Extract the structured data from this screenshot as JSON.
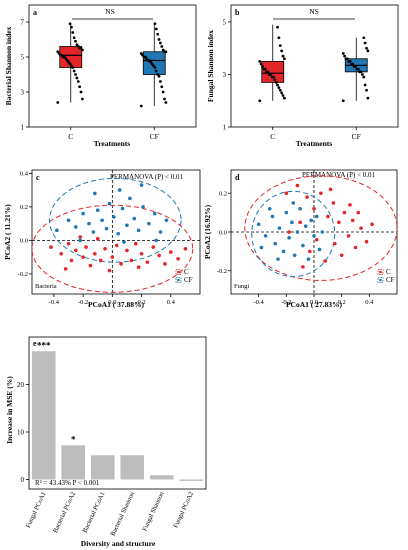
{
  "figure": {
    "panel_a": {
      "letter": "a",
      "ylabel": "Bacterial Shannon index",
      "xlabel": "Treatments",
      "significance": "NS"
    },
    "panel_b": {
      "letter": "b",
      "ylabel": "Fungal Shannon index",
      "xlabel": "Treatments",
      "significance": "NS"
    },
    "panel_c": {
      "letter": "c",
      "xlabel": "PCoA1 ( 37.88%)",
      "ylabel": "PCoA2 ( 11.21%)",
      "annotation": "PERMANOVA (P) < 0.01",
      "corner_label": "Bacteria",
      "legend": [
        "C",
        "CF"
      ]
    },
    "panel_d": {
      "letter": "d",
      "xlabel": "PCoA1 ( 27.83%)",
      "ylabel": "PCoA2 (16.92%)",
      "annotation": "PERMANOVA (P) < 0.01",
      "corner_label": "Fungi",
      "legend": [
        "C",
        "CF"
      ]
    },
    "panel_e": {
      "letter": "e",
      "ylabel": "Increase in MSE (%)",
      "xlabel": "Diversity and structure",
      "stat_text": "R² = 43.43%   P < 0.001"
    }
  },
  "colors": {
    "C": "#e3262a",
    "CF": "#1f78b4",
    "bar": "#bdbdbd"
  },
  "chart_data": [
    {
      "type": "box",
      "title": "",
      "xlabel": "Treatments",
      "ylabel": "Bacterial Shannon index",
      "categories": [
        "C",
        "CF"
      ],
      "ylim": [
        1,
        7
      ],
      "yticks": [
        1,
        3,
        5,
        7
      ],
      "boxes": [
        {
          "name": "C",
          "whisker_low": 2.4,
          "q1": 4.4,
          "median": 5.1,
          "q3": 5.6,
          "whisker_high": 6.9,
          "points": [
            2.4,
            2.6,
            3.0,
            3.3,
            3.6,
            3.8,
            4.0,
            4.2,
            4.4,
            4.5,
            4.6,
            4.7,
            4.8,
            4.9,
            5.0,
            5.0,
            5.1,
            5.1,
            5.2,
            5.3,
            5.4,
            5.5,
            5.5,
            5.6,
            5.7,
            5.9,
            6.1,
            6.4,
            6.7,
            6.9
          ]
        },
        {
          "name": "CF",
          "whisker_low": 2.2,
          "q1": 4.0,
          "median": 4.8,
          "q3": 5.3,
          "whisker_high": 6.9,
          "points": [
            2.2,
            2.4,
            2.6,
            3.0,
            3.3,
            3.6,
            3.9,
            4.0,
            4.2,
            4.4,
            4.5,
            4.6,
            4.7,
            4.8,
            4.8,
            4.9,
            5.0,
            5.0,
            5.1,
            5.2,
            5.3,
            5.3,
            5.4,
            5.6,
            5.8,
            6.0,
            6.3,
            6.6,
            6.9
          ]
        }
      ]
    },
    {
      "type": "box",
      "title": "",
      "xlabel": "Treatments",
      "ylabel": "Fungal Shannon index",
      "categories": [
        "C",
        "CF"
      ],
      "ylim": [
        1,
        5
      ],
      "yticks": [
        1,
        3,
        5
      ],
      "boxes": [
        {
          "name": "C",
          "whisker_low": 2.0,
          "q1": 2.7,
          "median": 3.05,
          "q3": 3.5,
          "whisker_high": 4.9,
          "points": [
            2.0,
            2.1,
            2.2,
            2.3,
            2.4,
            2.5,
            2.6,
            2.7,
            2.8,
            2.9,
            2.9,
            3.0,
            3.0,
            3.1,
            3.1,
            3.2,
            3.2,
            3.3,
            3.4,
            3.5,
            3.6,
            3.7,
            3.9,
            4.1,
            4.4,
            4.8
          ]
        },
        {
          "name": "CF",
          "whisker_low": 2.0,
          "q1": 3.1,
          "median": 3.35,
          "q3": 3.6,
          "whisker_high": 4.4,
          "points": [
            2.0,
            2.1,
            2.4,
            2.6,
            2.9,
            3.0,
            3.1,
            3.1,
            3.2,
            3.2,
            3.3,
            3.3,
            3.4,
            3.4,
            3.5,
            3.5,
            3.6,
            3.6,
            3.7,
            3.8,
            3.9,
            4.0,
            4.2,
            4.4
          ]
        }
      ]
    },
    {
      "type": "scatter",
      "title": "",
      "xlabel": "PCoA1 ( 37.88%)",
      "ylabel": "PCoA2 ( 11.21%)",
      "xlim": [
        -0.55,
        0.6
      ],
      "ylim": [
        -0.32,
        0.42
      ],
      "xticks": [
        -0.4,
        -0.2,
        0.0,
        0.2,
        0.4
      ],
      "yticks": [
        -0.2,
        0.0,
        0.2,
        0.4
      ],
      "series": [
        {
          "name": "C",
          "points": [
            [
              -0.42,
              -0.04
            ],
            [
              -0.35,
              -0.08
            ],
            [
              -0.3,
              -0.02
            ],
            [
              -0.28,
              -0.12
            ],
            [
              -0.25,
              -0.06
            ],
            [
              -0.22,
              0.02
            ],
            [
              -0.2,
              -0.1
            ],
            [
              -0.18,
              -0.04
            ],
            [
              -0.15,
              -0.15
            ],
            [
              -0.12,
              -0.08
            ],
            [
              -0.1,
              0.01
            ],
            [
              -0.08,
              -0.12
            ],
            [
              -0.05,
              -0.05
            ],
            [
              -0.02,
              -0.18
            ],
            [
              0.0,
              -0.1
            ],
            [
              0.03,
              -0.03
            ],
            [
              0.06,
              -0.14
            ],
            [
              0.1,
              -0.06
            ],
            [
              0.13,
              -0.12
            ],
            [
              0.16,
              -0.02
            ],
            [
              0.2,
              -0.08
            ],
            [
              0.24,
              -0.13
            ],
            [
              0.28,
              -0.04
            ],
            [
              0.32,
              -0.09
            ],
            [
              0.36,
              -0.14
            ],
            [
              0.4,
              -0.07
            ],
            [
              0.45,
              -0.11
            ],
            [
              0.5,
              -0.05
            ],
            [
              -0.32,
              -0.17
            ],
            [
              0.18,
              -0.16
            ]
          ]
        },
        {
          "name": "CF",
          "points": [
            [
              -0.38,
              0.06
            ],
            [
              -0.3,
              0.12
            ],
            [
              -0.25,
              0.08
            ],
            [
              -0.2,
              0.16
            ],
            [
              -0.16,
              0.1
            ],
            [
              -0.13,
              0.05
            ],
            [
              -0.1,
              0.18
            ],
            [
              -0.07,
              0.12
            ],
            [
              -0.04,
              0.07
            ],
            [
              -0.02,
              0.22
            ],
            [
              0.01,
              0.14
            ],
            [
              0.04,
              0.04
            ],
            [
              0.07,
              0.19
            ],
            [
              0.1,
              0.09
            ],
            [
              0.12,
              0.25
            ],
            [
              0.15,
              0.13
            ],
            [
              0.18,
              0.06
            ],
            [
              0.21,
              0.2
            ],
            [
              0.25,
              0.1
            ],
            [
              0.29,
              0.16
            ],
            [
              0.33,
              0.05
            ],
            [
              0.37,
              0.12
            ],
            [
              0.05,
              0.3
            ],
            [
              -0.12,
              0.28
            ],
            [
              0.2,
              0.33
            ],
            [
              -0.22,
              0.0
            ],
            [
              0.08,
              -0.01
            ],
            [
              0.3,
              0.0
            ]
          ]
        }
      ],
      "ellipses": [
        {
          "name": "C",
          "cx": 0.0,
          "cy": -0.05,
          "rx": 0.55,
          "ry": 0.26
        },
        {
          "name": "CF",
          "cx": 0.02,
          "cy": 0.12,
          "rx": 0.45,
          "ry": 0.25
        }
      ]
    },
    {
      "type": "scatter",
      "title": "",
      "xlabel": "PCoA1 ( 27.83%)",
      "ylabel": "PCoA2 (16.92%)",
      "xlim": [
        -0.6,
        0.6
      ],
      "ylim": [
        -0.32,
        0.32
      ],
      "xticks": [
        -0.4,
        -0.2,
        0.0,
        0.2,
        0.4
      ],
      "yticks": [
        -0.2,
        0.0,
        0.2
      ],
      "series": [
        {
          "name": "C",
          "points": [
            [
              -0.2,
              0.2
            ],
            [
              -0.12,
              0.24
            ],
            [
              -0.05,
              0.18
            ],
            [
              0.0,
              0.12
            ],
            [
              0.05,
              0.2
            ],
            [
              0.1,
              0.08
            ],
            [
              0.14,
              0.15
            ],
            [
              0.18,
              0.05
            ],
            [
              0.22,
              0.1
            ],
            [
              0.25,
              -0.02
            ],
            [
              0.28,
              0.06
            ],
            [
              0.3,
              -0.08
            ],
            [
              0.34,
              0.02
            ],
            [
              0.38,
              -0.05
            ],
            [
              0.42,
              0.04
            ],
            [
              0.2,
              -0.12
            ],
            [
              0.15,
              -0.06
            ],
            [
              0.08,
              -0.15
            ],
            [
              0.02,
              -0.04
            ],
            [
              -0.03,
              -0.1
            ],
            [
              -0.1,
              0.05
            ],
            [
              -0.18,
              0.0
            ],
            [
              0.12,
              0.22
            ],
            [
              0.26,
              0.14
            ],
            [
              0.32,
              0.1
            ],
            [
              -0.08,
              -0.18
            ]
          ]
        },
        {
          "name": "CF",
          "points": [
            [
              -0.4,
              0.04
            ],
            [
              -0.35,
              -0.02
            ],
            [
              -0.3,
              0.08
            ],
            [
              -0.28,
              -0.06
            ],
            [
              -0.25,
              0.02
            ],
            [
              -0.22,
              -0.1
            ],
            [
              -0.2,
              0.1
            ],
            [
              -0.18,
              -0.03
            ],
            [
              -0.16,
              0.05
            ],
            [
              -0.14,
              -0.12
            ],
            [
              -0.12,
              0.0
            ],
            [
              -0.1,
              0.12
            ],
            [
              -0.08,
              -0.07
            ],
            [
              -0.06,
              0.03
            ],
            [
              -0.04,
              -0.14
            ],
            [
              -0.02,
              0.06
            ],
            [
              0.0,
              -0.02
            ],
            [
              0.02,
              0.08
            ],
            [
              0.04,
              -0.09
            ],
            [
              -0.32,
              0.12
            ],
            [
              -0.26,
              -0.14
            ],
            [
              -0.15,
              0.15
            ],
            [
              0.06,
              0.0
            ],
            [
              -0.38,
              -0.08
            ]
          ]
        }
      ],
      "ellipses": [
        {
          "name": "C",
          "cx": 0.05,
          "cy": 0.02,
          "rx": 0.55,
          "ry": 0.27
        },
        {
          "name": "CF",
          "cx": -0.15,
          "cy": -0.01,
          "rx": 0.3,
          "ry": 0.22
        }
      ]
    },
    {
      "type": "bar",
      "title": "",
      "xlabel": "Diversity and structure",
      "ylabel": "Increase in MSE (%)",
      "categories": [
        "Fungal PCoA1",
        "Bacterial PCoA2",
        "Bacterial PCoA1",
        "Bacterial Shannon",
        "Fungal Shannon",
        "Fungal PCoA2"
      ],
      "values": [
        27.0,
        7.2,
        5.1,
        5.1,
        0.9,
        -0.3
      ],
      "labels": [
        "***",
        "*",
        "",
        "",
        "",
        ""
      ],
      "ylim": [
        -2,
        30
      ],
      "yticks": [
        0,
        10,
        20
      ]
    }
  ]
}
